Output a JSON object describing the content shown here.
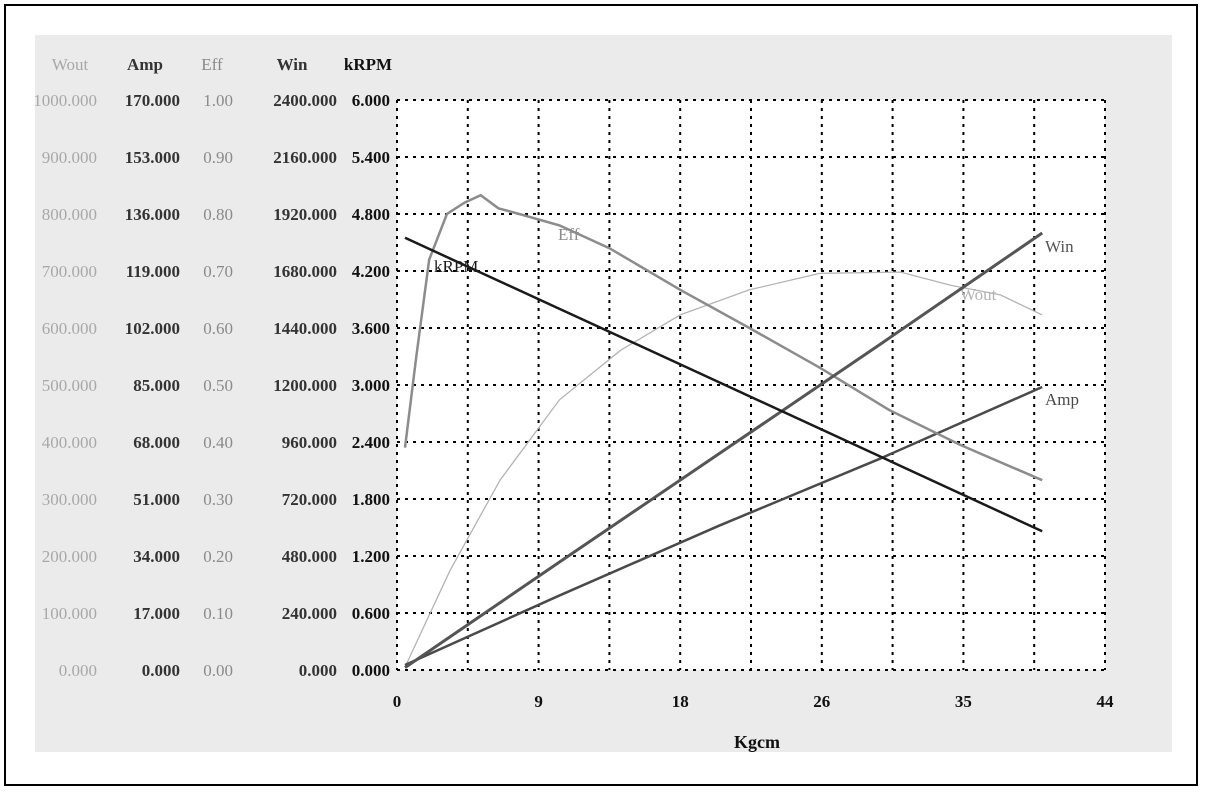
{
  "chart_data": {
    "type": "line",
    "xlabel": "Kgcm",
    "xlim": [
      0,
      44
    ],
    "x_ticks": [
      "0",
      "9",
      "18",
      "26",
      "35",
      "44"
    ],
    "grid": true,
    "y_axes": [
      {
        "name": "Wout",
        "ylim": [
          0,
          1000
        ],
        "ticks": [
          "0.000",
          "100.000",
          "200.000",
          "300.000",
          "400.000",
          "500.000",
          "600.000",
          "700.000",
          "800.000",
          "900.000",
          "1000.000"
        ],
        "color": "#a8a8a8"
      },
      {
        "name": "Amp",
        "ylim": [
          0,
          170
        ],
        "ticks": [
          "0.000",
          "17.000",
          "34.000",
          "51.000",
          "68.000",
          "85.000",
          "102.000",
          "119.000",
          "136.000",
          "153.000",
          "170.000"
        ],
        "color": "#333333"
      },
      {
        "name": "Eff",
        "ylim": [
          0,
          1
        ],
        "ticks": [
          "0.00",
          "0.10",
          "0.20",
          "0.30",
          "0.40",
          "0.50",
          "0.60",
          "0.70",
          "0.80",
          "0.90",
          "1.00"
        ],
        "color": "#8a8a8a"
      },
      {
        "name": "Win",
        "ylim": [
          0,
          2400
        ],
        "ticks": [
          "0.000",
          "240.000",
          "480.000",
          "720.000",
          "960.000",
          "1200.000",
          "1440.000",
          "1680.000",
          "1920.000",
          "2160.000",
          "2400.000"
        ],
        "color": "#333333"
      },
      {
        "name": "kRPM",
        "ylim": [
          0,
          6
        ],
        "ticks": [
          "0.000",
          "0.600",
          "1.200",
          "1.800",
          "2.400",
          "3.000",
          "3.600",
          "4.200",
          "4.800",
          "5.400",
          "6.000"
        ],
        "color": "#111111"
      }
    ],
    "series": [
      {
        "name": "Wout",
        "axis": 0,
        "color": "#b4b4b4",
        "points": [
          [
            0.5,
            5
          ],
          [
            3.3,
            175
          ],
          [
            6.4,
            333
          ],
          [
            10.1,
            474
          ],
          [
            13.9,
            561
          ],
          [
            17.6,
            623
          ],
          [
            21.9,
            667
          ],
          [
            26.3,
            696
          ],
          [
            31.3,
            698
          ],
          [
            34.4,
            675
          ],
          [
            37.5,
            658
          ],
          [
            40.1,
            623
          ]
        ]
      },
      {
        "name": "Amp",
        "axis": 1,
        "color": "#4a4a4a",
        "points": [
          [
            0.5,
            1.5
          ],
          [
            10,
            22
          ],
          [
            20,
            43
          ],
          [
            30,
            63
          ],
          [
            40.1,
            84.4
          ]
        ]
      },
      {
        "name": "Eff",
        "axis": 2,
        "color": "#8c8c8c",
        "points": [
          [
            0.5,
            0.39
          ],
          [
            1.2,
            0.55
          ],
          [
            2.0,
            0.72
          ],
          [
            3.1,
            0.8
          ],
          [
            4.2,
            0.82
          ],
          [
            5.2,
            0.833
          ],
          [
            6.3,
            0.81
          ],
          [
            7.6,
            0.8
          ],
          [
            10.1,
            0.78
          ],
          [
            13.2,
            0.74
          ],
          [
            17.6,
            0.667
          ],
          [
            21.9,
            0.6
          ],
          [
            26.3,
            0.53
          ],
          [
            30.6,
            0.456
          ],
          [
            35,
            0.395
          ],
          [
            40.1,
            0.333
          ]
        ]
      },
      {
        "name": "Win",
        "axis": 3,
        "color": "#555555",
        "points": [
          [
            0.5,
            10
          ],
          [
            10,
            450
          ],
          [
            20,
            910
          ],
          [
            30,
            1370
          ],
          [
            40.1,
            1840
          ]
        ]
      },
      {
        "name": "kRPM",
        "axis": 4,
        "color": "#1a1a1a",
        "points": [
          [
            0.5,
            4.55
          ],
          [
            10,
            3.81
          ],
          [
            20,
            3.03
          ],
          [
            30,
            2.25
          ],
          [
            40.1,
            1.46
          ]
        ]
      }
    ]
  }
}
